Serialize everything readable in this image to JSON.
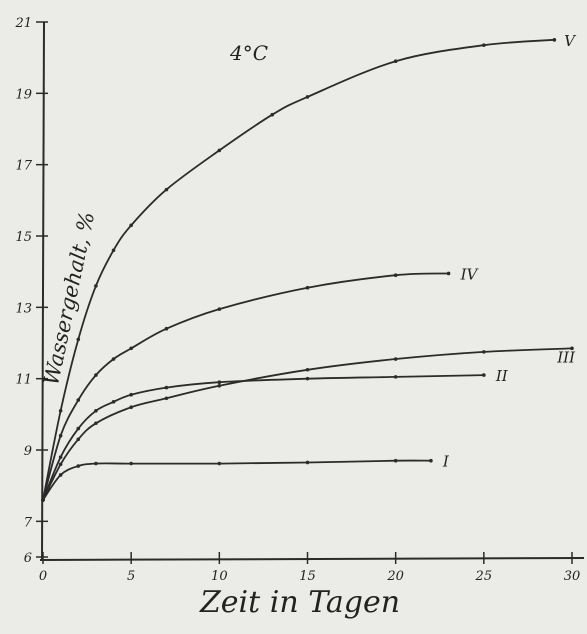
{
  "chart_data": {
    "type": "line",
    "title": "",
    "annotation": "4°C",
    "xlabel": "Zeit in Tagen",
    "ylabel": "Wassergehalt, %",
    "xlim": [
      0,
      30
    ],
    "ylim": [
      6,
      21
    ],
    "xticks": [
      "0",
      "5",
      "10",
      "15",
      "20",
      "25",
      "30"
    ],
    "yticks": [
      "6",
      "7",
      "9",
      "11",
      "13",
      "15",
      "17",
      "19",
      "21"
    ],
    "grid": false,
    "line_color": "#2b2b2b",
    "series": [
      {
        "name": "I",
        "x": [
          0,
          1,
          2,
          3,
          5,
          10,
          15,
          20,
          22
        ],
        "y": [
          7.6,
          8.3,
          8.55,
          8.62,
          8.62,
          8.62,
          8.65,
          8.7,
          8.7
        ]
      },
      {
        "name": "II",
        "x": [
          0,
          1,
          2,
          3,
          4,
          5,
          7,
          10,
          15,
          20,
          25
        ],
        "y": [
          7.6,
          8.8,
          9.6,
          10.1,
          10.35,
          10.55,
          10.75,
          10.9,
          11.0,
          11.05,
          11.1
        ]
      },
      {
        "name": "III",
        "x": [
          0,
          1,
          2,
          3,
          5,
          7,
          10,
          15,
          20,
          25,
          30
        ],
        "y": [
          7.6,
          8.6,
          9.3,
          9.75,
          10.2,
          10.45,
          10.8,
          11.25,
          11.55,
          11.75,
          11.85
        ]
      },
      {
        "name": "IV",
        "x": [
          0,
          1,
          2,
          3,
          4,
          5,
          7,
          10,
          15,
          20,
          23
        ],
        "y": [
          7.6,
          9.4,
          10.4,
          11.1,
          11.55,
          11.85,
          12.4,
          12.95,
          13.55,
          13.9,
          13.95
        ]
      },
      {
        "name": "V",
        "x": [
          0,
          1,
          2,
          3,
          4,
          5,
          7,
          10,
          13,
          15,
          20,
          25,
          29
        ],
        "y": [
          7.6,
          10.1,
          12.1,
          13.6,
          14.6,
          15.3,
          16.3,
          17.4,
          18.4,
          18.9,
          19.9,
          20.35,
          20.5
        ]
      }
    ]
  }
}
